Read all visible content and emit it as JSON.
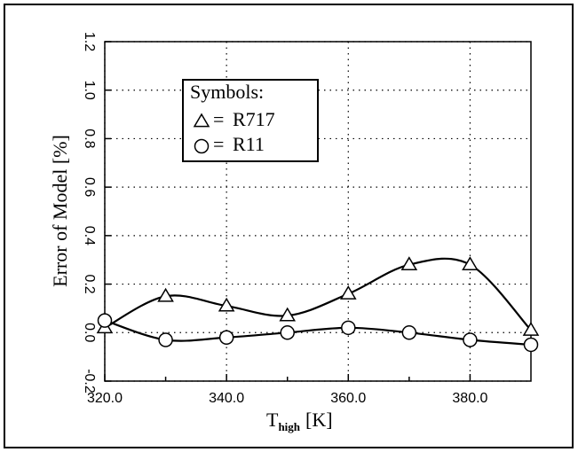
{
  "chart_data": {
    "type": "line",
    "xlabel": "T",
    "xlabel_sub": "high",
    "xlabel_unit": "[K]",
    "ylabel": "Error of Model [%]",
    "legend_title": "Symbols:",
    "legend_separator": "=",
    "x": [
      320,
      330,
      340,
      350,
      360,
      370,
      380,
      390
    ],
    "series": [
      {
        "name": "R717",
        "color": "#000000",
        "marker": "triangle",
        "values": [
          0.02,
          0.15,
          0.11,
          0.07,
          0.16,
          0.28,
          0.28,
          0.01
        ]
      },
      {
        "name": "R11",
        "color": "#000000",
        "marker": "circle",
        "values": [
          0.05,
          -0.03,
          -0.02,
          0.0,
          0.02,
          0.0,
          -0.03,
          -0.05
        ]
      }
    ],
    "xlim": [
      320,
      390
    ],
    "xticks": [
      {
        "value": 320,
        "label": "320.0"
      },
      {
        "value": 340,
        "label": "340.0"
      },
      {
        "value": 360,
        "label": "360.0"
      },
      {
        "value": 380,
        "label": "380.0"
      }
    ],
    "xminorticks": [
      330,
      350,
      370
    ],
    "ylim": [
      -0.2,
      1.2
    ],
    "yticks": [
      -0.2,
      {
        "value": 0,
        "label": "0.0"
      },
      0.2,
      0.4,
      0.6,
      0.8,
      {
        "value": 1,
        "label": "1.0"
      },
      1.2
    ],
    "grid": true
  }
}
